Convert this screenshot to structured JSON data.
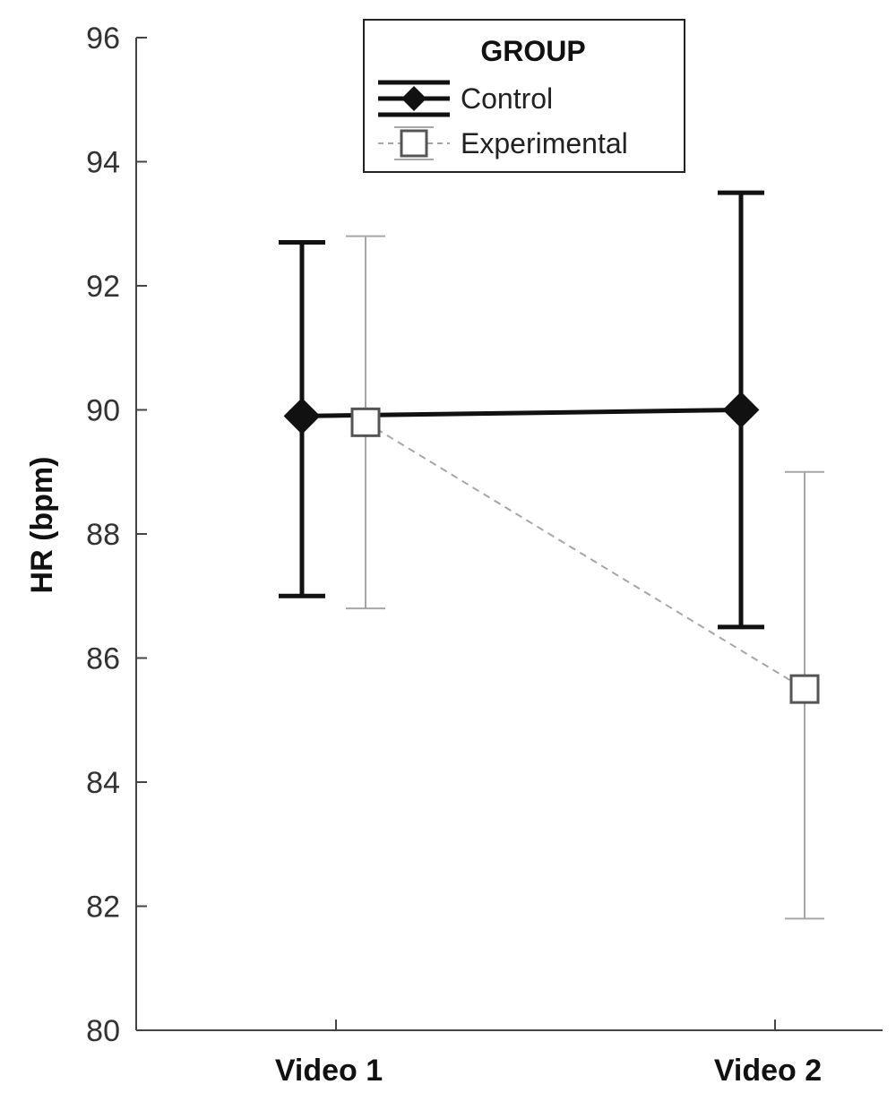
{
  "chart_data": {
    "type": "line",
    "ylabel": "HR (bpm)",
    "categories": [
      "Video 1",
      "Video 2"
    ],
    "ylim": [
      80,
      96
    ],
    "yticks": [
      80,
      82,
      84,
      86,
      88,
      90,
      92,
      94,
      96
    ],
    "grid": false,
    "legend": {
      "title": "GROUP",
      "position": "top-center"
    },
    "series": [
      {
        "name": "Control",
        "values": [
          89.9,
          90.0
        ],
        "error_low": [
          87.0,
          86.5
        ],
        "error_high": [
          92.7,
          93.5
        ],
        "color": "#111111",
        "marker": "filled-diamond",
        "line_style": "solid"
      },
      {
        "name": "Experimental",
        "values": [
          89.8,
          85.5
        ],
        "error_low": [
          86.8,
          81.8
        ],
        "error_high": [
          92.8,
          89.0
        ],
        "color": "#a6a6a6",
        "marker": "open-square",
        "line_style": "dashed"
      }
    ]
  }
}
